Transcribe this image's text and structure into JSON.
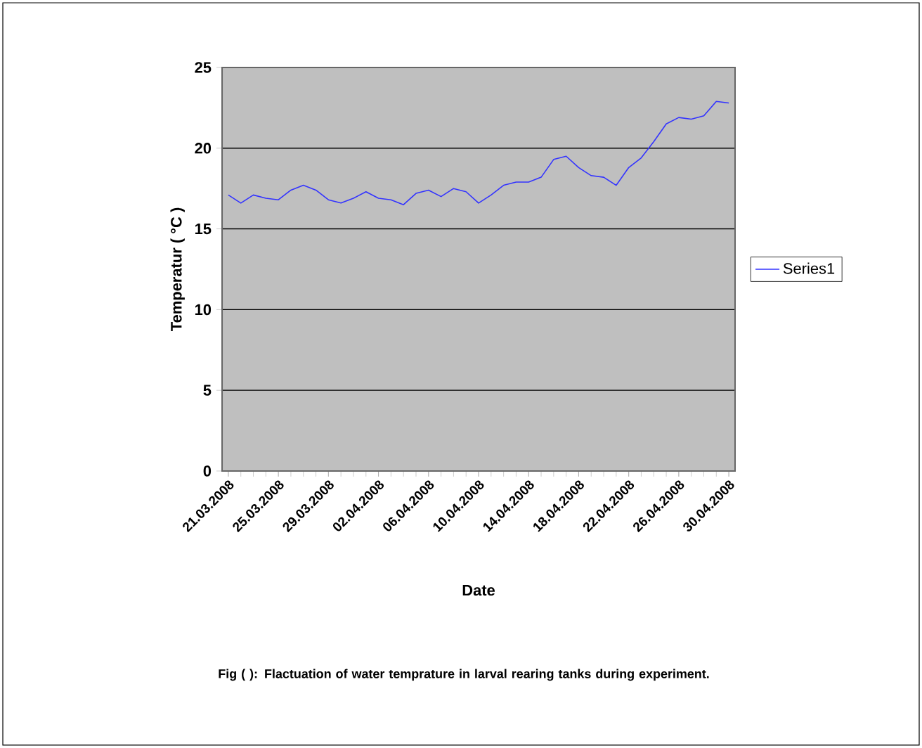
{
  "chart_data": {
    "type": "line",
    "xlabel": "Date",
    "ylabel": "Temperatur ( °C )",
    "categories": [
      "21.03.2008",
      null,
      null,
      null,
      "25.03.2008",
      null,
      null,
      null,
      "29.03.2008",
      null,
      null,
      null,
      "02.04.2008",
      null,
      null,
      null,
      "06.04.2008",
      null,
      null,
      null,
      "10.04.2008",
      null,
      null,
      null,
      "14.04.2008",
      null,
      null,
      null,
      "18.04.2008",
      null,
      null,
      null,
      "22.04.2008",
      null,
      null,
      null,
      "26.04.2008",
      null,
      null,
      null,
      "30.04.2008"
    ],
    "series": [
      {
        "name": "Series1",
        "color": "#3333ff",
        "values": [
          17.1,
          16.6,
          17.1,
          16.9,
          16.8,
          17.4,
          17.7,
          17.4,
          16.8,
          16.6,
          16.9,
          17.3,
          16.9,
          16.8,
          16.5,
          17.2,
          17.4,
          17.0,
          17.5,
          17.3,
          16.6,
          17.1,
          17.7,
          17.9,
          17.9,
          18.2,
          19.3,
          19.5,
          18.8,
          18.3,
          18.2,
          17.7,
          18.8,
          19.4,
          20.4,
          21.5,
          21.9,
          21.8,
          22.0,
          22.9,
          22.8
        ]
      }
    ],
    "ylim": [
      0,
      25
    ],
    "yticks": [
      0,
      5,
      10,
      15,
      20,
      25
    ],
    "grid": "y",
    "legend": "right",
    "marker": "none",
    "line_style": "solid",
    "annotations": [
      "Fig ( ): Flactuation of water temprature in larval rearing tanks during experiment."
    ]
  }
}
